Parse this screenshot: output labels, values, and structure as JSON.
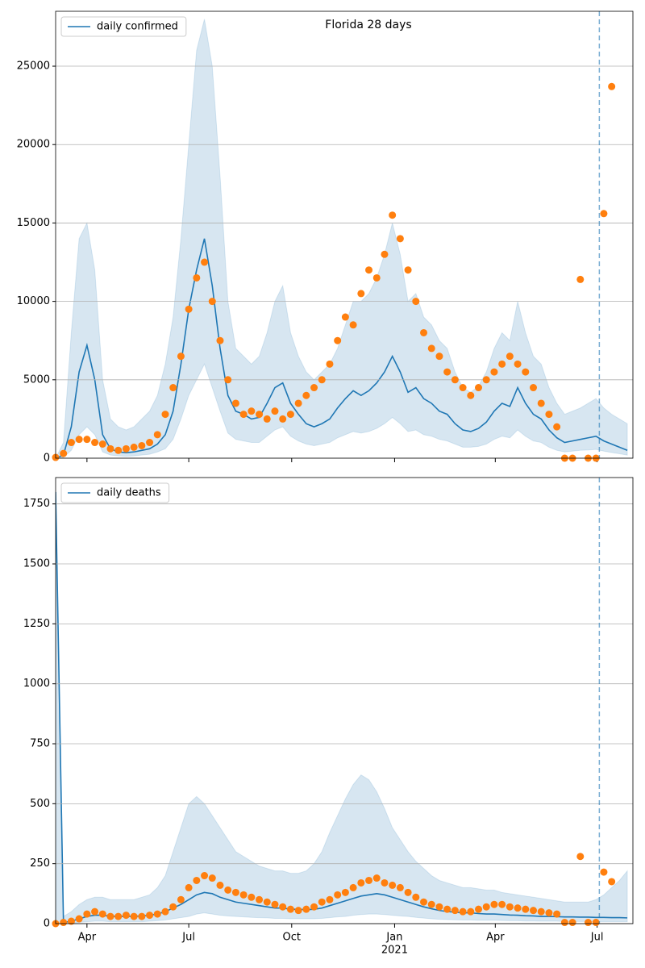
{
  "chart_data": [
    {
      "type": "line",
      "title": "Florida 28 days",
      "grid": true,
      "legend": "upper left",
      "sharex": true,
      "x": [
        0,
        7,
        14,
        21,
        28,
        35,
        42,
        49,
        56,
        63,
        70,
        77,
        84,
        91,
        98,
        105,
        112,
        119,
        126,
        133,
        140,
        147,
        154,
        161,
        168,
        175,
        182,
        189,
        196,
        203,
        210,
        217,
        224,
        231,
        238,
        245,
        252,
        259,
        266,
        273,
        280,
        287,
        294,
        301,
        308,
        315,
        322,
        329,
        336,
        343,
        350,
        357,
        364,
        371,
        378,
        385,
        392,
        399,
        406,
        413,
        420,
        427,
        434,
        441,
        448,
        455,
        462,
        469,
        476,
        483,
        490,
        497,
        504,
        511
      ],
      "xlim": [
        0,
        516
      ],
      "ylim": [
        0,
        28500
      ],
      "yticks": [
        0,
        5000,
        10000,
        15000,
        20000,
        25000
      ],
      "vline": 486,
      "series": [
        {
          "name": "daily confirmed",
          "color": "#1f77b4",
          "values": [
            0,
            200,
            2000,
            5500,
            7200,
            5000,
            1500,
            600,
            400,
            350,
            400,
            500,
            600,
            900,
            1500,
            3000,
            6000,
            9500,
            12000,
            14000,
            11000,
            7000,
            4000,
            3000,
            2800,
            2500,
            2600,
            3500,
            4500,
            4800,
            3500,
            2800,
            2200,
            2000,
            2200,
            2500,
            3200,
            3800,
            4300,
            4000,
            4300,
            4800,
            5500,
            6500,
            5500,
            4200,
            4500,
            3800,
            3500,
            3000,
            2800,
            2200,
            1800,
            1700,
            1900,
            2300,
            3000,
            3500,
            3300,
            4500,
            3500,
            2800,
            2500,
            1800,
            1300,
            1000,
            1100,
            1200,
            1300,
            1400,
            1100,
            900,
            700,
            500
          ]
        }
      ],
      "observed": {
        "color": "#ff7f0e",
        "values": [
          50,
          300,
          1000,
          1200,
          1200,
          1000,
          900,
          600,
          500,
          600,
          700,
          800,
          1000,
          1500,
          2800,
          4500,
          6500,
          9500,
          11500,
          12500,
          10000,
          7500,
          5000,
          3500,
          2800,
          3000,
          2800,
          2500,
          3000,
          2500,
          2800,
          3500,
          4000,
          4500,
          5000,
          6000,
          7500,
          9000,
          8500,
          10500,
          12000,
          11500,
          13000,
          15500,
          14000,
          12000,
          10000,
          8000,
          7000,
          6500,
          5500,
          5000,
          4500,
          4000,
          4500,
          5000,
          5500,
          6000,
          6500,
          6000,
          5500,
          4500,
          3500,
          2800,
          2000,
          0,
          0,
          11400,
          0,
          0,
          15600,
          23700,
          null,
          null
        ]
      },
      "band": {
        "color": "#1f77b4",
        "upper": [
          0,
          1000,
          8000,
          14000,
          15000,
          12000,
          5000,
          2500,
          2000,
          1800,
          2000,
          2500,
          3000,
          4000,
          6000,
          9000,
          14000,
          20000,
          26000,
          28000,
          25000,
          18000,
          10000,
          7000,
          6500,
          6000,
          6500,
          8000,
          10000,
          11000,
          8000,
          6500,
          5500,
          5000,
          5500,
          6000,
          7000,
          8500,
          10000,
          10000,
          10500,
          11500,
          13000,
          15000,
          13000,
          10000,
          10500,
          9000,
          8500,
          7500,
          7000,
          5500,
          4500,
          4200,
          4600,
          5500,
          7000,
          8000,
          7500,
          10000,
          8000,
          6500,
          6000,
          4500,
          3500,
          2800,
          3000,
          3200,
          3500,
          3800,
          3200,
          2800,
          2500,
          2200
        ],
        "lower": [
          0,
          50,
          500,
          1500,
          2000,
          1500,
          400,
          200,
          150,
          120,
          150,
          200,
          250,
          400,
          600,
          1200,
          2500,
          4000,
          5000,
          6000,
          4500,
          3000,
          1600,
          1200,
          1100,
          1000,
          1000,
          1400,
          1800,
          2000,
          1400,
          1100,
          900,
          800,
          900,
          1000,
          1300,
          1500,
          1700,
          1600,
          1700,
          1900,
          2200,
          2600,
          2200,
          1700,
          1800,
          1500,
          1400,
          1200,
          1100,
          900,
          700,
          700,
          750,
          900,
          1200,
          1400,
          1300,
          1800,
          1400,
          1100,
          1000,
          700,
          500,
          400,
          450,
          500,
          520,
          560,
          450,
          360,
          280,
          200
        ]
      }
    },
    {
      "type": "line",
      "grid": true,
      "legend": "upper left",
      "x": [
        0,
        7,
        14,
        21,
        28,
        35,
        42,
        49,
        56,
        63,
        70,
        77,
        84,
        91,
        98,
        105,
        112,
        119,
        126,
        133,
        140,
        147,
        154,
        161,
        168,
        175,
        182,
        189,
        196,
        203,
        210,
        217,
        224,
        231,
        238,
        245,
        252,
        259,
        266,
        273,
        280,
        287,
        294,
        301,
        308,
        315,
        322,
        329,
        336,
        343,
        350,
        357,
        364,
        371,
        378,
        385,
        392,
        399,
        406,
        413,
        420,
        427,
        434,
        441,
        448,
        455,
        462,
        469,
        476,
        483,
        490,
        497,
        504,
        511
      ],
      "xlim": [
        0,
        516
      ],
      "ylim": [
        0,
        1860
      ],
      "yticks": [
        0,
        250,
        500,
        750,
        1000,
        1250,
        1500,
        1750
      ],
      "vline": 486,
      "xticks": [
        {
          "value": 28,
          "label": "Apr"
        },
        {
          "value": 119,
          "label": "Jul"
        },
        {
          "value": 211,
          "label": "Oct"
        },
        {
          "value": 303,
          "label": "Jan"
        },
        {
          "value": 393,
          "label": "Apr"
        },
        {
          "value": 484,
          "label": "Jul"
        }
      ],
      "year": {
        "value": 303,
        "label": "2021"
      },
      "series": [
        {
          "name": "daily deaths",
          "color": "#1f77b4",
          "values": [
            1800,
            5,
            10,
            20,
            30,
            35,
            35,
            30,
            30,
            30,
            30,
            32,
            35,
            40,
            50,
            65,
            80,
            100,
            120,
            130,
            125,
            110,
            100,
            90,
            85,
            80,
            75,
            70,
            65,
            65,
            60,
            60,
            58,
            60,
            65,
            75,
            85,
            95,
            105,
            115,
            120,
            125,
            120,
            110,
            100,
            90,
            80,
            70,
            62,
            55,
            50,
            48,
            45,
            45,
            42,
            40,
            40,
            38,
            36,
            35,
            33,
            32,
            30,
            30,
            29,
            28,
            28,
            27,
            27,
            26,
            26,
            25,
            25,
            24
          ]
        }
      ],
      "observed": {
        "color": "#ff7f0e",
        "values": [
          0,
          5,
          10,
          20,
          40,
          50,
          40,
          30,
          30,
          35,
          30,
          30,
          35,
          40,
          50,
          70,
          100,
          150,
          180,
          200,
          190,
          160,
          140,
          130,
          120,
          110,
          100,
          90,
          80,
          70,
          60,
          55,
          60,
          70,
          90,
          100,
          120,
          130,
          150,
          170,
          180,
          190,
          170,
          160,
          150,
          130,
          110,
          90,
          80,
          70,
          60,
          55,
          50,
          50,
          60,
          70,
          80,
          80,
          70,
          65,
          60,
          55,
          50,
          45,
          40,
          5,
          5,
          280,
          5,
          5,
          215,
          175,
          null,
          null
        ]
      },
      "band": {
        "color": "#1f77b4",
        "upper": [
          1800,
          30,
          50,
          80,
          100,
          110,
          110,
          100,
          100,
          100,
          100,
          110,
          120,
          150,
          200,
          300,
          400,
          500,
          530,
          500,
          450,
          400,
          350,
          300,
          280,
          260,
          240,
          230,
          220,
          220,
          210,
          210,
          220,
          250,
          300,
          380,
          450,
          520,
          580,
          620,
          600,
          550,
          480,
          400,
          350,
          300,
          260,
          230,
          200,
          180,
          170,
          160,
          150,
          150,
          145,
          140,
          140,
          130,
          125,
          120,
          115,
          110,
          105,
          100,
          95,
          90,
          90,
          90,
          90,
          100,
          120,
          150,
          180,
          220
        ],
        "lower": [
          0,
          0,
          2,
          5,
          8,
          10,
          10,
          8,
          8,
          8,
          8,
          8,
          10,
          12,
          15,
          20,
          25,
          30,
          40,
          45,
          40,
          35,
          32,
          30,
          28,
          26,
          25,
          24,
          22,
          22,
          20,
          20,
          20,
          20,
          22,
          25,
          28,
          30,
          35,
          38,
          40,
          40,
          38,
          35,
          32,
          30,
          26,
          23,
          20,
          18,
          17,
          16,
          15,
          15,
          14,
          14,
          14,
          13,
          12,
          12,
          11,
          11,
          10,
          10,
          10,
          9,
          9,
          9,
          9,
          8,
          8,
          8,
          8,
          8
        ]
      }
    }
  ]
}
